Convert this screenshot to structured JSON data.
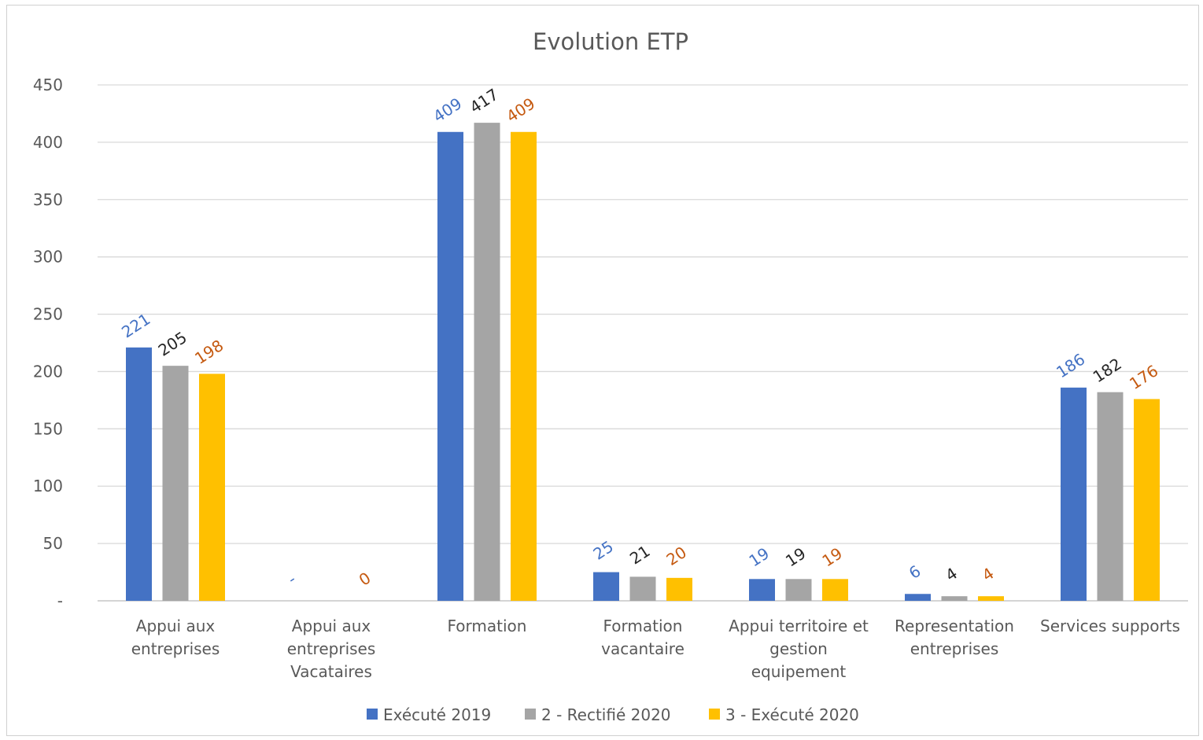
{
  "chart_data": {
    "type": "bar",
    "title": "Evolution ETP",
    "xlabel": "",
    "ylabel": "",
    "ylim": [
      0,
      450
    ],
    "yticks": [
      0,
      50,
      100,
      150,
      200,
      250,
      300,
      350,
      400,
      450
    ],
    "ytick_labels": [
      "-",
      "50",
      "100",
      "150",
      "200",
      "250",
      "300",
      "350",
      "400",
      "450"
    ],
    "grid": true,
    "legend_position": "bottom",
    "categories": [
      [
        "Appui aux",
        "entreprises"
      ],
      [
        "Appui aux",
        "entreprises",
        "Vacataires"
      ],
      [
        "Formation"
      ],
      [
        "Formation",
        "vacantaire"
      ],
      [
        "Appui territoire et",
        "gestion",
        "equipement"
      ],
      [
        "Representation",
        "entreprises"
      ],
      [
        "Services supports"
      ]
    ],
    "series": [
      {
        "name": "Exécuté 2019",
        "color": "#4472c4",
        "label_color": "#4472c4",
        "values": [
          221,
          0,
          409,
          25,
          19,
          6,
          186
        ],
        "labels": [
          "221",
          "-",
          "409",
          "25",
          "19",
          "6",
          "186"
        ]
      },
      {
        "name": "2 - Rectifié 2020",
        "color": "#a5a5a5",
        "label_color": "#262626",
        "values": [
          205,
          0,
          417,
          21,
          19,
          4,
          182
        ],
        "labels": [
          "205",
          "",
          "417",
          "21",
          "19",
          "4",
          "182"
        ]
      },
      {
        "name": "3 - Exécuté 2020",
        "color": "#ffc000",
        "label_color": "#c55a11",
        "values": [
          198,
          0,
          409,
          20,
          19,
          4,
          176
        ],
        "labels": [
          "198",
          "0",
          "409",
          "20",
          "19",
          "4",
          "176"
        ]
      }
    ]
  }
}
